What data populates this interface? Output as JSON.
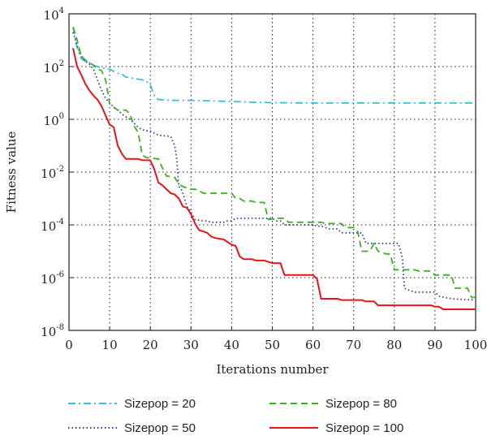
{
  "chart_data": {
    "type": "line",
    "xlabel": "Iterations number",
    "ylabel": "Fitness value",
    "xlim": [
      0,
      100
    ],
    "ylim_log10": [
      -8,
      4
    ],
    "yscale": "log",
    "grid": true,
    "legend_placement": "below",
    "x_ticks": [
      "0",
      "10",
      "20",
      "30",
      "40",
      "50",
      "60",
      "70",
      "80",
      "90",
      "100"
    ],
    "y_ticks": [
      {
        "base": "10",
        "exp": "4"
      },
      {
        "base": "10",
        "exp": "2"
      },
      {
        "base": "10",
        "exp": "0"
      },
      {
        "base": "10",
        "exp": "-2"
      },
      {
        "base": "10",
        "exp": "-4"
      },
      {
        "base": "10",
        "exp": "-6"
      },
      {
        "base": "10",
        "exp": "-8"
      }
    ],
    "series": [
      {
        "name": "Sizepop = 20",
        "color": "#35c0d8",
        "dash": "dashdot",
        "points_log10": [
          [
            1,
            3.5
          ],
          [
            2,
            2.7
          ],
          [
            3,
            2.3
          ],
          [
            4,
            2.2
          ],
          [
            5,
            2.15
          ],
          [
            6,
            2.05
          ],
          [
            8,
            1.95
          ],
          [
            10,
            1.9
          ],
          [
            12,
            1.75
          ],
          [
            13,
            1.72
          ],
          [
            14,
            1.6
          ],
          [
            16,
            1.55
          ],
          [
            18,
            1.5
          ],
          [
            19,
            1.45
          ],
          [
            20,
            1.3
          ],
          [
            21,
            0.9
          ],
          [
            22,
            0.75
          ],
          [
            25,
            0.72
          ],
          [
            30,
            0.72
          ],
          [
            35,
            0.7
          ],
          [
            40,
            0.68
          ],
          [
            45,
            0.65
          ],
          [
            50,
            0.63
          ],
          [
            60,
            0.62
          ],
          [
            70,
            0.62
          ],
          [
            80,
            0.62
          ],
          [
            90,
            0.62
          ],
          [
            100,
            0.62
          ]
        ]
      },
      {
        "name": "Sizepop = 50",
        "color": "#2b3aa0",
        "dash": "dotted",
        "points_log10": [
          [
            1,
            3.3
          ],
          [
            2,
            2.8
          ],
          [
            3,
            2.4
          ],
          [
            4,
            2.2
          ],
          [
            5,
            2.1
          ],
          [
            6,
            1.9
          ],
          [
            7,
            1.5
          ],
          [
            8,
            1.1
          ],
          [
            9,
            0.8
          ],
          [
            10,
            0.6
          ],
          [
            12,
            0.35
          ],
          [
            13,
            0.2
          ],
          [
            14,
            0.1
          ],
          [
            15,
            0.0
          ],
          [
            16,
            -0.15
          ],
          [
            17,
            -0.3
          ],
          [
            18,
            -0.4
          ],
          [
            20,
            -0.45
          ],
          [
            22,
            -0.6
          ],
          [
            25,
            -0.65
          ],
          [
            26,
            -1.0
          ],
          [
            26.5,
            -1.5
          ],
          [
            27,
            -2.55
          ],
          [
            27.5,
            -2.6
          ],
          [
            28,
            -2.8
          ],
          [
            29,
            -3.3
          ],
          [
            30,
            -3.5
          ],
          [
            31,
            -3.8
          ],
          [
            33,
            -3.85
          ],
          [
            34,
            -3.85
          ],
          [
            35,
            -3.9
          ],
          [
            36,
            -3.9
          ],
          [
            38,
            -3.9
          ],
          [
            39,
            -3.85
          ],
          [
            40,
            -3.85
          ],
          [
            41,
            -3.75
          ],
          [
            42,
            -3.75
          ],
          [
            50,
            -3.75
          ],
          [
            51,
            -3.85
          ],
          [
            52,
            -3.85
          ],
          [
            53,
            -4.0
          ],
          [
            60,
            -4.0
          ],
          [
            61,
            -4.05
          ],
          [
            62,
            -4.05
          ],
          [
            64,
            -4.15
          ],
          [
            66,
            -4.15
          ],
          [
            67,
            -4.3
          ],
          [
            72,
            -4.3
          ],
          [
            73,
            -4.7
          ],
          [
            81,
            -4.7
          ],
          [
            82,
            -5.25
          ],
          [
            82.5,
            -6.4
          ],
          [
            84,
            -6.5
          ],
          [
            85,
            -6.55
          ],
          [
            90,
            -6.55
          ],
          [
            91,
            -6.7
          ],
          [
            94,
            -6.8
          ],
          [
            100,
            -6.85
          ]
        ]
      },
      {
        "name": "Sizepop = 80",
        "color": "#3db021",
        "dash": "dashed",
        "points_log10": [
          [
            1,
            3.5
          ],
          [
            2,
            3.0
          ],
          [
            3,
            2.4
          ],
          [
            4,
            2.25
          ],
          [
            5,
            2.15
          ],
          [
            6,
            2.05
          ],
          [
            7,
            1.9
          ],
          [
            8,
            1.85
          ],
          [
            9,
            1.5
          ],
          [
            10,
            0.6
          ],
          [
            11,
            0.45
          ],
          [
            12,
            0.35
          ],
          [
            13,
            0.35
          ],
          [
            14,
            0.35
          ],
          [
            15,
            0.2
          ],
          [
            16,
            -0.25
          ],
          [
            17,
            -0.5
          ],
          [
            18,
            -1.35
          ],
          [
            19,
            -1.45
          ],
          [
            22,
            -1.5
          ],
          [
            23,
            -1.85
          ],
          [
            24,
            -2.15
          ],
          [
            26,
            -2.2
          ],
          [
            27,
            -2.45
          ],
          [
            28,
            -2.55
          ],
          [
            29,
            -2.6
          ],
          [
            30,
            -2.65
          ],
          [
            31,
            -2.65
          ],
          [
            32,
            -2.7
          ],
          [
            33,
            -2.8
          ],
          [
            40,
            -2.8
          ],
          [
            41,
            -3.0
          ],
          [
            42,
            -3.0
          ],
          [
            43,
            -3.1
          ],
          [
            45,
            -3.1
          ],
          [
            46,
            -3.15
          ],
          [
            48,
            -3.15
          ],
          [
            49,
            -3.8
          ],
          [
            51,
            -3.75
          ],
          [
            53,
            -3.75
          ],
          [
            54,
            -3.9
          ],
          [
            62,
            -3.9
          ],
          [
            63,
            -3.95
          ],
          [
            67,
            -3.95
          ],
          [
            68,
            -4.1
          ],
          [
            70,
            -4.1
          ],
          [
            71,
            -4.25
          ],
          [
            72,
            -5.0
          ],
          [
            74,
            -5.0
          ],
          [
            75,
            -4.7
          ],
          [
            76,
            -5.0
          ],
          [
            78,
            -5.1
          ],
          [
            79,
            -5.1
          ],
          [
            80,
            -5.7
          ],
          [
            85,
            -5.7
          ],
          [
            86,
            -5.75
          ],
          [
            89,
            -5.75
          ],
          [
            90,
            -5.9
          ],
          [
            94,
            -5.9
          ],
          [
            95,
            -6.4
          ],
          [
            98,
            -6.4
          ],
          [
            99,
            -6.75
          ],
          [
            100,
            -6.75
          ]
        ]
      },
      {
        "name": "Sizepop = 100",
        "color": "#e8141b",
        "dash": "solid",
        "points_log10": [
          [
            1,
            2.7
          ],
          [
            2,
            2.0
          ],
          [
            3,
            1.7
          ],
          [
            4,
            1.35
          ],
          [
            5,
            1.1
          ],
          [
            6,
            0.9
          ],
          [
            7,
            0.75
          ],
          [
            8,
            0.5
          ],
          [
            9,
            0.15
          ],
          [
            10,
            -0.2
          ],
          [
            11,
            -0.3
          ],
          [
            12,
            -1.0
          ],
          [
            13,
            -1.3
          ],
          [
            14,
            -1.5
          ],
          [
            15,
            -1.5
          ],
          [
            17,
            -1.5
          ],
          [
            18,
            -1.55
          ],
          [
            20,
            -1.55
          ],
          [
            21,
            -1.9
          ],
          [
            22,
            -2.4
          ],
          [
            23,
            -2.5
          ],
          [
            25,
            -2.8
          ],
          [
            26,
            -2.85
          ],
          [
            27,
            -3.0
          ],
          [
            28,
            -3.3
          ],
          [
            29,
            -3.35
          ],
          [
            30,
            -3.6
          ],
          [
            31,
            -3.95
          ],
          [
            32,
            -4.2
          ],
          [
            33,
            -4.25
          ],
          [
            34,
            -4.3
          ],
          [
            35,
            -4.45
          ],
          [
            36,
            -4.5
          ],
          [
            38,
            -4.55
          ],
          [
            39,
            -4.65
          ],
          [
            40,
            -4.75
          ],
          [
            41,
            -4.8
          ],
          [
            42,
            -5.2
          ],
          [
            43,
            -5.3
          ],
          [
            45,
            -5.3
          ],
          [
            46,
            -5.35
          ],
          [
            48,
            -5.35
          ],
          [
            50,
            -5.45
          ],
          [
            52,
            -5.45
          ],
          [
            53,
            -5.9
          ],
          [
            60,
            -5.9
          ],
          [
            61,
            -6.05
          ],
          [
            62,
            -6.8
          ],
          [
            66,
            -6.8
          ],
          [
            67,
            -6.85
          ],
          [
            72,
            -6.85
          ],
          [
            73,
            -6.9
          ],
          [
            75,
            -6.9
          ],
          [
            76,
            -7.05
          ],
          [
            88,
            -7.05
          ],
          [
            89,
            -7.05
          ],
          [
            90,
            -7.1
          ],
          [
            91,
            -7.1
          ],
          [
            92,
            -7.2
          ],
          [
            100,
            -7.2
          ]
        ]
      }
    ]
  }
}
